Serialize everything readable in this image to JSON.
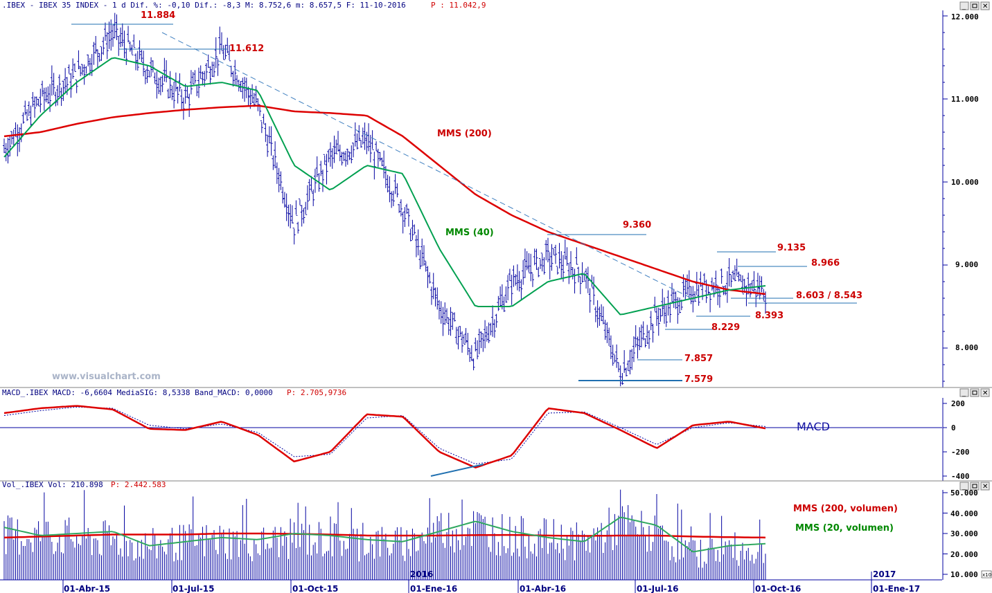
{
  "header": {
    "price_text": ".IBEX - IBEX 35 INDEX -  1 d Dif. %: -0,10 Dif.: -8,3 M: 8.752,6 m: 8.657,5 F: 11-10-2016",
    "price_last": "P : 11.042,9",
    "macd_text": "MACD_.IBEX MACD: -6,6604 MediaSIG: 8,5338 Band_MACD: 0,0000",
    "macd_last": "P: 2.705,9736",
    "vol_text": "Vol_.IBEX Vol: 210.898",
    "vol_last": "P: 2.442.583"
  },
  "watermark": "www.visualchart.com",
  "annotations": {
    "high1": "11.884",
    "high2": "11.612",
    "mms200": "MMS (200)",
    "mms40": "MMS (40)",
    "l9360": "9.360",
    "l9135": "9.135",
    "l8966": "8.966",
    "l8603": "8.603 / 8.543",
    "l8393": "8.393",
    "l8229": "8.229",
    "l7857": "7.857",
    "l7579": "7.579",
    "macd": "MACD",
    "vol200": "MMS (200, volumen)",
    "vol20": "MMS (20, volumen)"
  },
  "x_ticks": [
    "01-Abr-15",
    "01-Jul-15",
    "01-Oct-15",
    "01-Ene-16",
    "01-Abr-16",
    "01-Jul-16",
    "01-Oct-16",
    "01-Ene-17"
  ],
  "year_labels": [
    "2016",
    "2017"
  ],
  "price_ticks": [
    "12.000",
    "11.000",
    "10.000",
    "9.000",
    "8.000"
  ],
  "macd_ticks": [
    "200",
    "0",
    "-200",
    "-400"
  ],
  "vol_ticks": [
    "50.000",
    "40.000",
    "30.000",
    "20.000",
    "10.000"
  ],
  "vol_unit": "x10",
  "colors": {
    "candles": "#0000a0",
    "mms200": "#dd0000",
    "mms40": "#00a050",
    "trendline": "#4080c0",
    "levels": "#1f6fb0",
    "axis": "#0000a0",
    "background": "#ffffff"
  },
  "chart_data": [
    {
      "type": "candlestick",
      "title": ".IBEX - IBEX 35 INDEX",
      "ylim": [
        7400,
        12100
      ],
      "x": [
        "2015-01",
        "2015-02",
        "2015-03",
        "2015-04",
        "2015-05",
        "2015-06",
        "2015-07",
        "2015-08",
        "2015-09",
        "2015-10",
        "2015-11",
        "2015-12",
        "2016-01",
        "2016-02",
        "2016-03",
        "2016-04",
        "2016-05",
        "2016-06",
        "2016-07",
        "2016-08",
        "2016-09",
        "2016-10"
      ],
      "price_path": [
        10400,
        11000,
        11300,
        11800,
        11350,
        11000,
        11600,
        10900,
        9500,
        10300,
        10500,
        9700,
        8500,
        7900,
        8800,
        9100,
        8900,
        7700,
        8400,
        8700,
        8800,
        8700
      ],
      "series": [
        {
          "name": "MMS (40)",
          "values": [
            10300,
            10800,
            11200,
            11500,
            11400,
            11150,
            11200,
            11100,
            10200,
            9900,
            10200,
            10100,
            9200,
            8500,
            8500,
            8800,
            8900,
            8400,
            8500,
            8600,
            8700,
            8750
          ]
        },
        {
          "name": "MMS (200)",
          "values": [
            10550,
            10600,
            10700,
            10780,
            10830,
            10870,
            10900,
            10920,
            10850,
            10830,
            10800,
            10550,
            10200,
            9850,
            9600,
            9400,
            9250,
            9100,
            8950,
            8800,
            8700,
            8650
          ]
        }
      ],
      "levels": [
        11884,
        11612,
        9360,
        9135,
        8966,
        8603,
        8543,
        8393,
        8229,
        7857,
        7579
      ]
    },
    {
      "type": "line",
      "title": "MACD",
      "ylim": [
        -420,
        220
      ],
      "x": [
        "2015-01",
        "2015-02",
        "2015-03",
        "2015-04",
        "2015-05",
        "2015-06",
        "2015-07",
        "2015-08",
        "2015-09",
        "2015-10",
        "2015-11",
        "2015-12",
        "2016-01",
        "2016-02",
        "2016-03",
        "2016-04",
        "2016-05",
        "2016-06",
        "2016-07",
        "2016-08",
        "2016-09",
        "2016-10"
      ],
      "series": [
        {
          "name": "MACD",
          "values": [
            120,
            160,
            180,
            150,
            -10,
            -20,
            50,
            -60,
            -280,
            -200,
            110,
            90,
            -200,
            -330,
            -230,
            160,
            120,
            -20,
            -170,
            20,
            50,
            -7
          ]
        },
        {
          "name": "MediaSIG",
          "values": [
            100,
            140,
            170,
            160,
            20,
            -10,
            30,
            -40,
            -240,
            -220,
            80,
            100,
            -170,
            -300,
            -260,
            120,
            130,
            0,
            -140,
            0,
            40,
            9
          ]
        }
      ]
    },
    {
      "type": "bar",
      "title": "Vol",
      "ylim": [
        8000,
        52000
      ],
      "x": [
        "2015-01",
        "2015-02",
        "2015-03",
        "2015-04",
        "2015-05",
        "2015-06",
        "2015-07",
        "2015-08",
        "2015-09",
        "2015-10",
        "2015-11",
        "2015-12",
        "2016-01",
        "2016-02",
        "2016-03",
        "2016-04",
        "2016-05",
        "2016-06",
        "2016-07",
        "2016-08",
        "2016-09",
        "2016-10"
      ],
      "values": [
        30000,
        31000,
        29000,
        28000,
        25000,
        27000,
        28000,
        26000,
        29000,
        28000,
        27000,
        26000,
        33000,
        35000,
        30000,
        29000,
        27000,
        36000,
        30000,
        21000,
        24000,
        21000
      ],
      "series": [
        {
          "name": "MMS (200, volumen)",
          "values": [
            28000,
            28500,
            29000,
            29500,
            29500,
            29500,
            30000,
            30000,
            29800,
            29500,
            29000,
            29000,
            29000,
            29200,
            29300,
            29000,
            28800,
            29000,
            29000,
            28500,
            28200,
            28000
          ]
        },
        {
          "name": "MMS (20, volumen)",
          "values": [
            33000,
            29000,
            30000,
            31000,
            24000,
            26000,
            28000,
            27000,
            30000,
            29000,
            27000,
            26000,
            31000,
            36000,
            31000,
            28000,
            26000,
            38000,
            34000,
            21000,
            24000,
            25000
          ]
        }
      ]
    }
  ]
}
